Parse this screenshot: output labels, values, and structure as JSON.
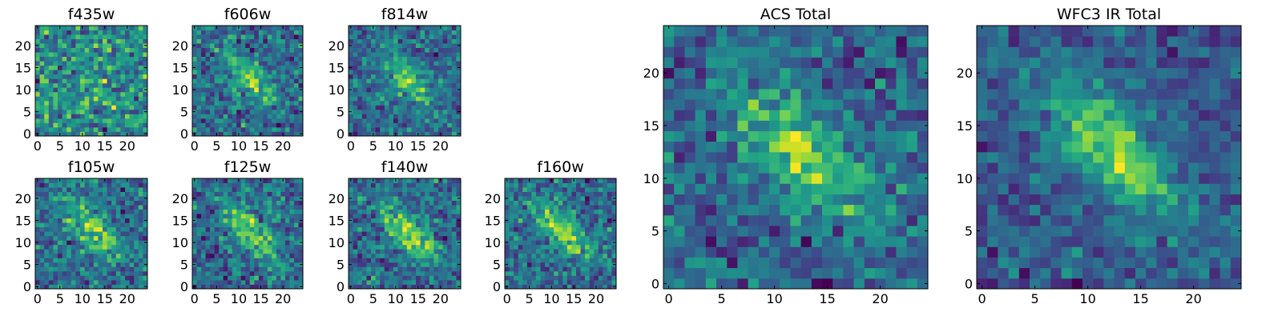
{
  "chart_data": [
    {
      "type": "heatmap",
      "title": "f435w",
      "seed": 11,
      "noise": 0.9,
      "amp": 0.25,
      "xlim": [
        0,
        24
      ],
      "ylim": [
        0,
        24
      ],
      "xticks": [
        "0",
        "5",
        "10",
        "15",
        "20"
      ],
      "yticks": [
        "0",
        "5",
        "10",
        "15",
        "20"
      ],
      "colormap": "viridis"
    },
    {
      "type": "heatmap",
      "title": "f606w",
      "seed": 23,
      "noise": 0.55,
      "amp": 0.75,
      "xlim": [
        0,
        24
      ],
      "ylim": [
        0,
        24
      ],
      "xticks": [
        "0",
        "5",
        "10",
        "15",
        "20"
      ],
      "yticks": [
        "0",
        "5",
        "10",
        "15",
        "20"
      ],
      "colormap": "viridis"
    },
    {
      "type": "heatmap",
      "title": "f814w",
      "seed": 37,
      "noise": 0.55,
      "amp": 0.85,
      "xlim": [
        0,
        24
      ],
      "ylim": [
        0,
        24
      ],
      "xticks": [
        "0",
        "5",
        "10",
        "15",
        "20"
      ],
      "yticks": [
        "0",
        "5",
        "10",
        "15",
        "20"
      ],
      "colormap": "viridis"
    },
    {
      "type": "heatmap",
      "title": "f105w",
      "seed": 41,
      "noise": 0.45,
      "amp": 0.7,
      "xlim": [
        0,
        24
      ],
      "ylim": [
        0,
        24
      ],
      "xticks": [
        "0",
        "5",
        "10",
        "15",
        "20"
      ],
      "yticks": [
        "0",
        "5",
        "10",
        "15",
        "20"
      ],
      "colormap": "viridis"
    },
    {
      "type": "heatmap",
      "title": "f125w",
      "seed": 53,
      "noise": 0.45,
      "amp": 0.75,
      "xlim": [
        0,
        24
      ],
      "ylim": [
        0,
        24
      ],
      "xticks": [
        "0",
        "5",
        "10",
        "15",
        "20"
      ],
      "yticks": [
        "0",
        "5",
        "10",
        "15",
        "20"
      ],
      "colormap": "viridis"
    },
    {
      "type": "heatmap",
      "title": "f140w",
      "seed": 67,
      "noise": 0.4,
      "amp": 0.8,
      "xlim": [
        0,
        24
      ],
      "ylim": [
        0,
        24
      ],
      "xticks": [
        "0",
        "5",
        "10",
        "15",
        "20"
      ],
      "yticks": [
        "0",
        "5",
        "10",
        "15",
        "20"
      ],
      "colormap": "viridis"
    },
    {
      "type": "heatmap",
      "title": "f160w",
      "seed": 79,
      "noise": 0.45,
      "amp": 0.75,
      "xlim": [
        0,
        24
      ],
      "ylim": [
        0,
        24
      ],
      "xticks": [
        "0",
        "5",
        "10",
        "15",
        "20"
      ],
      "yticks": [
        "0",
        "5",
        "10",
        "15",
        "20"
      ],
      "colormap": "viridis"
    },
    {
      "type": "heatmap",
      "title": "ACS Total",
      "seed": 83,
      "noise": 0.45,
      "amp": 0.85,
      "xlim": [
        0,
        24
      ],
      "ylim": [
        0,
        24
      ],
      "xticks": [
        "0",
        "5",
        "10",
        "15",
        "20"
      ],
      "yticks": [
        "0",
        "5",
        "10",
        "15",
        "20"
      ],
      "colormap": "viridis"
    },
    {
      "type": "heatmap",
      "title": "WFC3 IR Total",
      "seed": 97,
      "noise": 0.3,
      "amp": 0.85,
      "xlim": [
        0,
        24
      ],
      "ylim": [
        0,
        24
      ],
      "xticks": [
        "0",
        "5",
        "10",
        "15",
        "20"
      ],
      "yticks": [
        "0",
        "5",
        "10",
        "15",
        "20"
      ],
      "colormap": "viridis"
    }
  ]
}
